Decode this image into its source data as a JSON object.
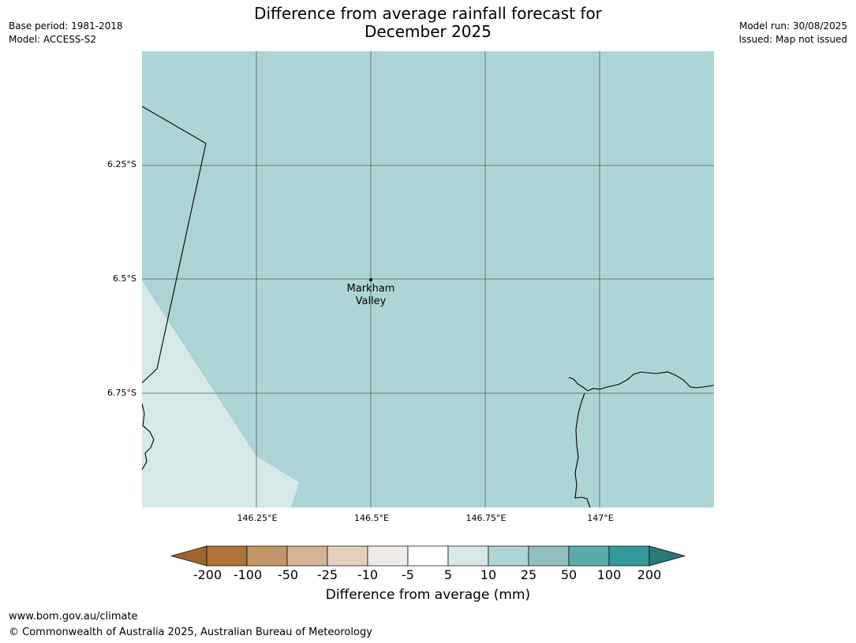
{
  "title": {
    "line1": "Difference from average rainfall forecast for",
    "line2": "December 2025"
  },
  "meta": {
    "base_period": "Base period: 1981-2018",
    "model": "Model: ACCESS-S2",
    "model_run": "Model run: 30/08/2025",
    "issued": "Issued: Map not issued"
  },
  "map": {
    "lat_labels": [
      "6.25°S",
      "6.5°S",
      "6.75°S"
    ],
    "lon_labels": [
      "146.25°E",
      "146.5°E",
      "146.75°E",
      "147°E"
    ],
    "place": {
      "name_line1": "Markham",
      "name_line2": "Valley"
    },
    "colors": {
      "category_10_25": "#aed5d5",
      "category_5_10": "#d6e8e8",
      "coast": "#000000",
      "grid": "#333333"
    }
  },
  "legend": {
    "title": "Difference from average (mm)",
    "ticks": [
      "-200",
      "-100",
      "-50",
      "-25",
      "-10",
      "-5",
      "5",
      "10",
      "25",
      "50",
      "100",
      "200"
    ],
    "colors": [
      "#9e6531",
      "#b07339",
      "#c29466",
      "#d4b493",
      "#e3d0bf",
      "#efebe7",
      "#ffffff",
      "#d6e8e8",
      "#aed5d5",
      "#91bfbf",
      "#5aaaab",
      "#32999a",
      "#2a7a7a"
    ]
  },
  "footer": {
    "url": "www.bom.gov.au/climate",
    "copyright": "© Commonwealth of Australia 2025, Australian Bureau of Meteorology"
  }
}
